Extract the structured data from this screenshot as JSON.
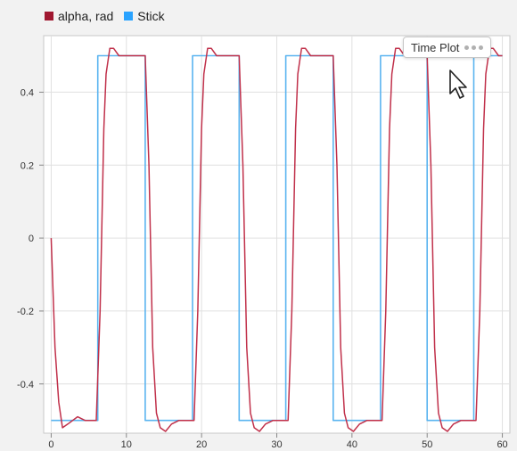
{
  "legend": [
    {
      "label": "alpha, rad",
      "color": "#a01830"
    },
    {
      "label": "Stick",
      "color": "#2aa3ff"
    }
  ],
  "tooltip": {
    "label": "Time Plot",
    "icon": "ellipsis-icon"
  },
  "chart_data": {
    "type": "line",
    "title": "",
    "xlabel": "",
    "ylabel": "",
    "xlim": [
      -1,
      61
    ],
    "ylim": [
      -0.535,
      0.555
    ],
    "xticks": [
      0,
      10,
      20,
      30,
      40,
      50,
      60
    ],
    "yticks": [
      0.4,
      0.2,
      0,
      -0.2,
      -0.4
    ],
    "grid": true,
    "legend_position": "top-left",
    "series": [
      {
        "name": "alpha, rad",
        "color": "#c0304a",
        "points": [
          [
            0,
            0
          ],
          [
            0.5,
            -0.3
          ],
          [
            1.0,
            -0.45
          ],
          [
            1.5,
            -0.52
          ],
          [
            2.2,
            -0.51
          ],
          [
            3.5,
            -0.49
          ],
          [
            4.5,
            -0.5
          ],
          [
            6,
            -0.5
          ],
          [
            6.5,
            -0.2
          ],
          [
            7.0,
            0.3
          ],
          [
            7.3,
            0.45
          ],
          [
            7.8,
            0.52
          ],
          [
            8.3,
            0.52
          ],
          [
            9,
            0.5
          ],
          [
            10,
            0.5
          ],
          [
            12.5,
            0.5
          ],
          [
            13.0,
            0.2
          ],
          [
            13.5,
            -0.3
          ],
          [
            14.0,
            -0.48
          ],
          [
            14.5,
            -0.52
          ],
          [
            15.2,
            -0.53
          ],
          [
            16,
            -0.51
          ],
          [
            17,
            -0.5
          ],
          [
            19,
            -0.5
          ],
          [
            19.5,
            -0.2
          ],
          [
            20.0,
            0.3
          ],
          [
            20.3,
            0.45
          ],
          [
            20.8,
            0.52
          ],
          [
            21.3,
            0.52
          ],
          [
            22,
            0.5
          ],
          [
            25,
            0.5
          ],
          [
            25.5,
            0.2
          ],
          [
            26.0,
            -0.3
          ],
          [
            26.5,
            -0.48
          ],
          [
            27.0,
            -0.52
          ],
          [
            27.7,
            -0.53
          ],
          [
            28.5,
            -0.51
          ],
          [
            29.5,
            -0.5
          ],
          [
            31.5,
            -0.5
          ],
          [
            32.0,
            -0.2
          ],
          [
            32.5,
            0.3
          ],
          [
            32.8,
            0.45
          ],
          [
            33.3,
            0.52
          ],
          [
            33.8,
            0.52
          ],
          [
            34.5,
            0.5
          ],
          [
            37.5,
            0.5
          ],
          [
            38.0,
            0.2
          ],
          [
            38.5,
            -0.3
          ],
          [
            39.0,
            -0.48
          ],
          [
            39.5,
            -0.52
          ],
          [
            40.2,
            -0.53
          ],
          [
            41,
            -0.51
          ],
          [
            42,
            -0.5
          ],
          [
            44,
            -0.5
          ],
          [
            44.5,
            -0.2
          ],
          [
            45.0,
            0.3
          ],
          [
            45.3,
            0.45
          ],
          [
            45.8,
            0.52
          ],
          [
            46.3,
            0.52
          ],
          [
            47,
            0.5
          ],
          [
            50,
            0.5
          ],
          [
            50.5,
            0.2
          ],
          [
            51.0,
            -0.3
          ],
          [
            51.5,
            -0.48
          ],
          [
            52.0,
            -0.52
          ],
          [
            52.7,
            -0.53
          ],
          [
            53.5,
            -0.51
          ],
          [
            54.5,
            -0.5
          ],
          [
            56.5,
            -0.5
          ],
          [
            57.0,
            -0.2
          ],
          [
            57.5,
            0.3
          ],
          [
            57.8,
            0.45
          ],
          [
            58.3,
            0.52
          ],
          [
            58.8,
            0.52
          ],
          [
            59.5,
            0.5
          ],
          [
            60,
            0.5
          ]
        ]
      },
      {
        "name": "Stick",
        "color": "#5ab4f0",
        "points": [
          [
            0,
            -0.5
          ],
          [
            6.2,
            -0.5
          ],
          [
            6.2,
            0.5
          ],
          [
            12.5,
            0.5
          ],
          [
            12.5,
            -0.5
          ],
          [
            18.8,
            -0.5
          ],
          [
            18.8,
            0.5
          ],
          [
            25,
            0.5
          ],
          [
            25,
            -0.5
          ],
          [
            31.2,
            -0.5
          ],
          [
            31.2,
            0.5
          ],
          [
            37.5,
            0.5
          ],
          [
            37.5,
            -0.5
          ],
          [
            43.8,
            -0.5
          ],
          [
            43.8,
            0.5
          ],
          [
            50,
            0.5
          ],
          [
            50,
            -0.5
          ],
          [
            56.2,
            -0.5
          ],
          [
            56.2,
            0.5
          ],
          [
            60,
            0.5
          ]
        ]
      }
    ]
  }
}
